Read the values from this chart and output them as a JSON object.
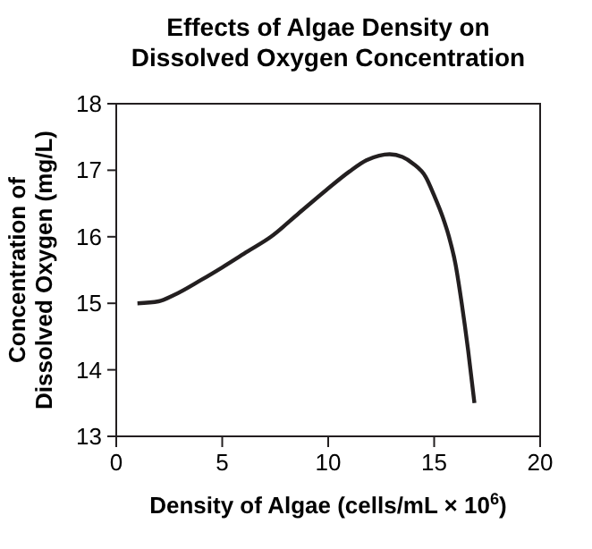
{
  "chart_data": {
    "type": "line",
    "title": "Effects of Algae Density on\nDissolved Oxygen Concentration",
    "xlabel": "Density of Algae (cells/mL × 10$^{6}$)",
    "ylabel": "Concentration of\nDissolved Oxygen (mg/L)",
    "xlim": [
      0,
      20
    ],
    "xticks": [
      0,
      5,
      10,
      15,
      20
    ],
    "ylim": [
      13,
      18
    ],
    "yticks": [
      13,
      14,
      15,
      16,
      17,
      18
    ],
    "grid": false,
    "marker": "none",
    "line_style": "solid",
    "series": [
      {
        "color": "#231f20",
        "x": [
          1.0,
          2.0,
          2.7,
          4.0,
          5.0,
          6.2,
          7.3,
          8.6,
          9.9,
          11.0,
          11.8,
          12.4,
          12.9,
          13.5,
          14.0,
          14.6,
          15.0,
          15.4,
          15.7,
          16.0,
          16.3,
          16.6,
          16.9
        ],
        "values": [
          15.0,
          15.03,
          15.12,
          15.35,
          15.54,
          15.78,
          16.0,
          16.35,
          16.7,
          16.98,
          17.15,
          17.22,
          17.24,
          17.2,
          17.1,
          16.9,
          16.62,
          16.3,
          16.0,
          15.6,
          15.0,
          14.3,
          13.5
        ]
      }
    ]
  }
}
